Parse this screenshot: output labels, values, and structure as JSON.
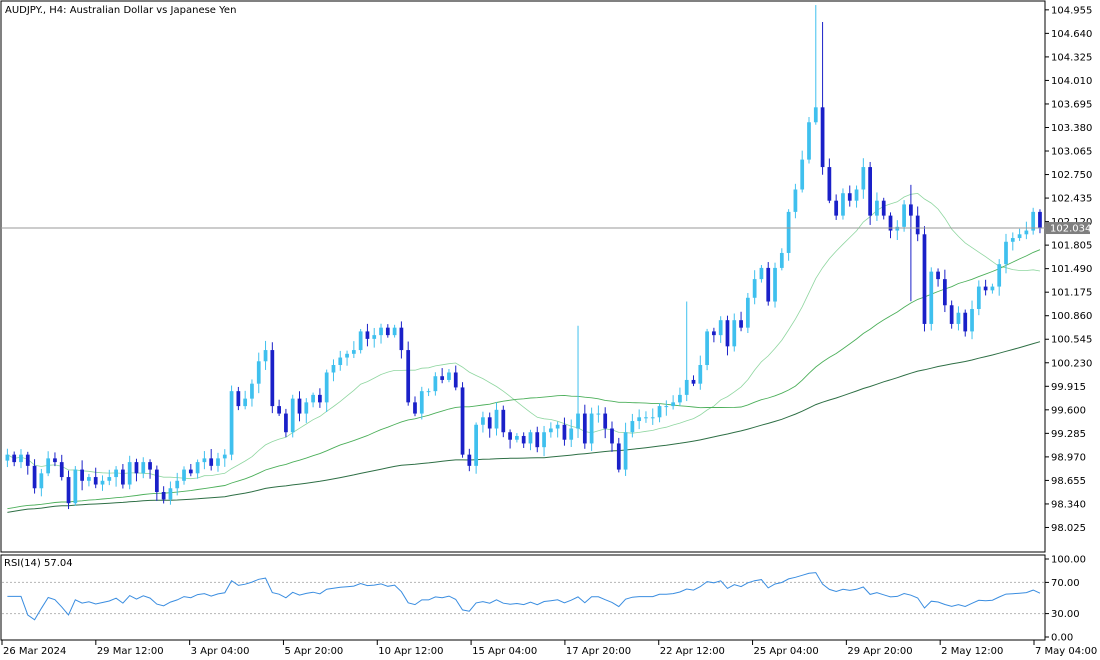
{
  "header": {
    "symbol": "AUDJPY.",
    "timeframe": "H4",
    "description": "Australian Dollar vs Japanese Yen"
  },
  "rsi_header": {
    "label": "RSI(14)",
    "value": "57.04"
  },
  "colors": {
    "bull": "#3fc0ee",
    "bear": "#1a20c8",
    "ma_fast": "#8fd6a0",
    "ma_mid": "#4caf5a",
    "ma_slow": "#2e6f45",
    "rsi": "#3a8de0",
    "price_badge": "#7f7f7f"
  },
  "chart_data": [
    {
      "type": "candlestick",
      "title": "AUDJPY., H4: Australian Dollar vs Japanese Yen",
      "ylim": [
        97.71,
        105.06
      ],
      "y_ticks": [
        "104.955",
        "104.640",
        "104.325",
        "104.010",
        "103.695",
        "103.380",
        "103.065",
        "102.750",
        "102.435",
        "102.120",
        "101.805",
        "101.490",
        "101.175",
        "100.860",
        "100.545",
        "100.230",
        "99.915",
        "99.600",
        "99.285",
        "98.970",
        "98.655",
        "98.340",
        "98.025"
      ],
      "x_ticks": [
        "26 Mar 2024",
        "29 Mar 12:00",
        "3 Apr 04:00",
        "5 Apr 20:00",
        "10 Apr 12:00",
        "15 Apr 04:00",
        "17 Apr 20:00",
        "22 Apr 12:00",
        "25 Apr 04:00",
        "29 Apr 20:00",
        "2 May 12:00",
        "7 May 04:00"
      ],
      "current_price": "102.034",
      "closes": [
        99.0,
        98.9,
        99.0,
        98.85,
        98.55,
        98.75,
        98.95,
        98.9,
        98.7,
        98.35,
        98.8,
        98.65,
        98.7,
        98.6,
        98.65,
        98.7,
        98.8,
        98.6,
        98.9,
        98.75,
        98.9,
        98.8,
        98.5,
        98.4,
        98.55,
        98.65,
        98.8,
        98.75,
        98.9,
        98.95,
        98.85,
        98.95,
        99.0,
        99.85,
        99.65,
        99.75,
        99.95,
        100.25,
        100.4,
        99.65,
        99.55,
        99.3,
        99.75,
        99.55,
        99.7,
        99.8,
        99.7,
        100.1,
        100.2,
        100.3,
        100.35,
        100.4,
        100.65,
        100.55,
        100.6,
        100.7,
        100.6,
        100.7,
        100.4,
        99.7,
        99.55,
        99.85,
        99.85,
        100.05,
        100.0,
        100.1,
        99.9,
        99.0,
        98.85,
        99.4,
        99.5,
        99.35,
        99.6,
        99.3,
        99.2,
        99.25,
        99.15,
        99.3,
        99.1,
        99.3,
        99.35,
        99.4,
        99.2,
        99.35,
        99.55,
        99.15,
        99.55,
        99.55,
        99.35,
        99.15,
        98.8,
        99.3,
        99.45,
        99.5,
        99.5,
        99.5,
        99.65,
        99.65,
        99.7,
        99.8,
        100.0,
        99.95,
        100.2,
        100.65,
        100.6,
        100.8,
        100.45,
        100.8,
        100.7,
        101.1,
        101.35,
        101.5,
        101.05,
        101.5,
        101.7,
        102.25,
        102.55,
        102.95,
        103.45,
        103.65,
        102.85,
        102.4,
        102.2,
        102.5,
        102.4,
        102.55,
        102.85,
        102.2,
        102.4,
        102.2,
        102.0,
        102.05,
        102.35,
        102.2,
        101.95,
        100.75,
        101.45,
        101.35,
        101.0,
        100.75,
        100.9,
        100.65,
        100.95,
        101.25,
        101.2,
        101.25,
        101.55,
        101.85,
        101.9,
        101.95,
        102.0,
        102.25,
        102.03
      ],
      "series": [
        {
          "name": "",
          "kind": "moving average",
          "data": "fast"
        },
        {
          "name": "",
          "kind": "moving average",
          "data": "medium"
        },
        {
          "name": "",
          "kind": "moving average",
          "data": "slow"
        }
      ]
    },
    {
      "type": "line",
      "title": "RSI(14) 57.04",
      "ylim": [
        0,
        100
      ],
      "y_ticks": [
        "100.00",
        "70.00",
        "30.00",
        "0.00"
      ],
      "levels": [
        70,
        30
      ]
    }
  ]
}
